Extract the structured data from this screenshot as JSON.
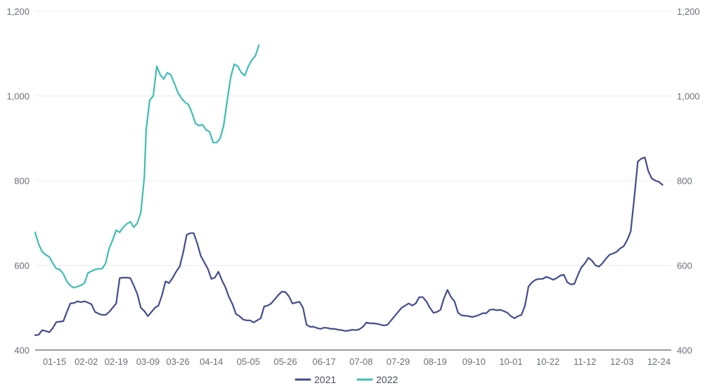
{
  "chart_data": {
    "type": "line",
    "title": "",
    "xlabel": "",
    "ylabel": "",
    "ylim": [
      400,
      1200
    ],
    "yticks": [
      400,
      600,
      800,
      1000,
      1200
    ],
    "ytick_labels": [
      "400",
      "600",
      "800",
      "1,000",
      "1,200"
    ],
    "xtick_labels": [
      "01-15",
      "02-02",
      "02-19",
      "03-09",
      "03-26",
      "04-14",
      "05-05",
      "05-26",
      "06-17",
      "07-08",
      "07-29",
      "08-19",
      "09-10",
      "10-01",
      "10-22",
      "11-12",
      "12-03",
      "12-24"
    ],
    "x_domain": [
      "01-04",
      "12-31"
    ],
    "grid": true,
    "legend_position": "bottom-center",
    "series": [
      {
        "name": "2021",
        "color": "#434b91",
        "points": [
          [
            "01-04",
            435
          ],
          [
            "01-06",
            436
          ],
          [
            "01-08",
            447
          ],
          [
            "01-10",
            445
          ],
          [
            "01-12",
            442
          ],
          [
            "01-14",
            452
          ],
          [
            "01-16",
            466
          ],
          [
            "01-18",
            467
          ],
          [
            "01-20",
            468
          ],
          [
            "01-22",
            490
          ],
          [
            "01-24",
            510
          ],
          [
            "01-26",
            511
          ],
          [
            "01-28",
            515
          ],
          [
            "01-30",
            513
          ],
          [
            "02-01",
            515
          ],
          [
            "02-03",
            512
          ],
          [
            "02-05",
            508
          ],
          [
            "02-07",
            490
          ],
          [
            "02-09",
            486
          ],
          [
            "02-11",
            483
          ],
          [
            "02-13",
            483
          ],
          [
            "02-15",
            490
          ],
          [
            "02-17",
            500
          ],
          [
            "02-19",
            510
          ],
          [
            "02-21",
            570
          ],
          [
            "02-23",
            571
          ],
          [
            "02-25",
            571
          ],
          [
            "02-27",
            570
          ],
          [
            "03-01",
            552
          ],
          [
            "03-03",
            532
          ],
          [
            "03-05",
            500
          ],
          [
            "03-07",
            492
          ],
          [
            "03-09",
            480
          ],
          [
            "03-11",
            490
          ],
          [
            "03-13",
            500
          ],
          [
            "03-15",
            505
          ],
          [
            "03-17",
            530
          ],
          [
            "03-19",
            562
          ],
          [
            "03-21",
            558
          ],
          [
            "03-23",
            570
          ],
          [
            "03-25",
            585
          ],
          [
            "03-27",
            597
          ],
          [
            "03-29",
            630
          ],
          [
            "03-31",
            672
          ],
          [
            "04-02",
            676
          ],
          [
            "04-04",
            676
          ],
          [
            "04-06",
            652
          ],
          [
            "04-08",
            622
          ],
          [
            "04-10",
            607
          ],
          [
            "04-12",
            592
          ],
          [
            "04-14",
            568
          ],
          [
            "04-16",
            571
          ],
          [
            "04-18",
            585
          ],
          [
            "04-20",
            565
          ],
          [
            "04-22",
            548
          ],
          [
            "04-24",
            525
          ],
          [
            "04-26",
            508
          ],
          [
            "04-28",
            485
          ],
          [
            "04-30",
            480
          ],
          [
            "05-02",
            472
          ],
          [
            "05-04",
            470
          ],
          [
            "05-06",
            470
          ],
          [
            "05-08",
            465
          ],
          [
            "05-10",
            470
          ],
          [
            "05-12",
            475
          ],
          [
            "05-14",
            503
          ],
          [
            "05-16",
            505
          ],
          [
            "05-18",
            510
          ],
          [
            "05-20",
            520
          ],
          [
            "05-22",
            530
          ],
          [
            "05-24",
            538
          ],
          [
            "05-26",
            537
          ],
          [
            "05-28",
            527
          ],
          [
            "05-30",
            510
          ],
          [
            "06-01",
            512
          ],
          [
            "06-03",
            514
          ],
          [
            "06-05",
            500
          ],
          [
            "06-07",
            460
          ],
          [
            "06-09",
            455
          ],
          [
            "06-11",
            455
          ],
          [
            "06-13",
            452
          ],
          [
            "06-15",
            450
          ],
          [
            "06-17",
            453
          ],
          [
            "06-19",
            452
          ],
          [
            "06-21",
            450
          ],
          [
            "06-23",
            450
          ],
          [
            "06-25",
            448
          ],
          [
            "06-27",
            447
          ],
          [
            "06-29",
            445
          ],
          [
            "07-01",
            446
          ],
          [
            "07-03",
            448
          ],
          [
            "07-05",
            447
          ],
          [
            "07-07",
            449
          ],
          [
            "07-09",
            455
          ],
          [
            "07-11",
            465
          ],
          [
            "07-13",
            463
          ],
          [
            "07-15",
            463
          ],
          [
            "07-17",
            462
          ],
          [
            "07-19",
            460
          ],
          [
            "07-21",
            458
          ],
          [
            "07-23",
            460
          ],
          [
            "07-25",
            470
          ],
          [
            "07-27",
            480
          ],
          [
            "07-29",
            490
          ],
          [
            "07-31",
            500
          ],
          [
            "08-02",
            505
          ],
          [
            "08-04",
            510
          ],
          [
            "08-06",
            505
          ],
          [
            "08-08",
            510
          ],
          [
            "08-10",
            525
          ],
          [
            "08-12",
            525
          ],
          [
            "08-14",
            515
          ],
          [
            "08-16",
            500
          ],
          [
            "08-18",
            488
          ],
          [
            "08-20",
            490
          ],
          [
            "08-22",
            495
          ],
          [
            "08-24",
            522
          ],
          [
            "08-26",
            542
          ],
          [
            "08-28",
            525
          ],
          [
            "08-30",
            515
          ],
          [
            "09-01",
            488
          ],
          [
            "09-03",
            482
          ],
          [
            "09-05",
            481
          ],
          [
            "09-07",
            480
          ],
          [
            "09-09",
            478
          ],
          [
            "09-11",
            480
          ],
          [
            "09-13",
            483
          ],
          [
            "09-15",
            487
          ],
          [
            "09-17",
            487
          ],
          [
            "09-19",
            495
          ],
          [
            "09-21",
            496
          ],
          [
            "09-23",
            494
          ],
          [
            "09-25",
            495
          ],
          [
            "09-27",
            492
          ],
          [
            "09-29",
            488
          ],
          [
            "10-01",
            480
          ],
          [
            "10-03",
            475
          ],
          [
            "10-05",
            480
          ],
          [
            "10-07",
            483
          ],
          [
            "10-09",
            505
          ],
          [
            "10-11",
            550
          ],
          [
            "10-13",
            560
          ],
          [
            "10-15",
            566
          ],
          [
            "10-17",
            568
          ],
          [
            "10-19",
            568
          ],
          [
            "10-21",
            573
          ],
          [
            "10-23",
            570
          ],
          [
            "10-25",
            566
          ],
          [
            "10-27",
            570
          ],
          [
            "10-29",
            576
          ],
          [
            "10-31",
            578
          ],
          [
            "11-02",
            560
          ],
          [
            "11-04",
            555
          ],
          [
            "11-06",
            556
          ],
          [
            "11-08",
            577
          ],
          [
            "11-10",
            595
          ],
          [
            "11-12",
            605
          ],
          [
            "11-14",
            618
          ],
          [
            "11-16",
            611
          ],
          [
            "11-18",
            600
          ],
          [
            "11-20",
            597
          ],
          [
            "11-22",
            605
          ],
          [
            "11-24",
            616
          ],
          [
            "11-26",
            625
          ],
          [
            "11-28",
            628
          ],
          [
            "11-30",
            632
          ],
          [
            "12-02",
            640
          ],
          [
            "12-04",
            645
          ],
          [
            "12-06",
            660
          ],
          [
            "12-08",
            680
          ],
          [
            "12-10",
            760
          ],
          [
            "12-12",
            845
          ],
          [
            "12-14",
            852
          ],
          [
            "12-16",
            855
          ],
          [
            "12-18",
            822
          ],
          [
            "12-20",
            805
          ],
          [
            "12-22",
            800
          ],
          [
            "12-24",
            797
          ],
          [
            "12-26",
            790
          ]
        ]
      },
      {
        "name": "2022",
        "color": "#3dbdb4",
        "points": [
          [
            "01-04",
            678
          ],
          [
            "01-06",
            650
          ],
          [
            "01-08",
            632
          ],
          [
            "01-10",
            625
          ],
          [
            "01-12",
            620
          ],
          [
            "01-14",
            605
          ],
          [
            "01-16",
            592
          ],
          [
            "01-18",
            590
          ],
          [
            "01-20",
            580
          ],
          [
            "01-22",
            562
          ],
          [
            "01-24",
            552
          ],
          [
            "01-26",
            547
          ],
          [
            "01-28",
            550
          ],
          [
            "01-30",
            553
          ],
          [
            "02-01",
            558
          ],
          [
            "02-03",
            582
          ],
          [
            "02-05",
            586
          ],
          [
            "02-07",
            590
          ],
          [
            "02-09",
            592
          ],
          [
            "02-11",
            592
          ],
          [
            "02-13",
            605
          ],
          [
            "02-15",
            640
          ],
          [
            "02-17",
            660
          ],
          [
            "02-19",
            683
          ],
          [
            "02-21",
            678
          ],
          [
            "02-23",
            690
          ],
          [
            "02-25",
            698
          ],
          [
            "02-27",
            703
          ],
          [
            "03-01",
            690
          ],
          [
            "03-03",
            700
          ],
          [
            "03-05",
            725
          ],
          [
            "03-07",
            810
          ],
          [
            "03-08",
            920
          ],
          [
            "03-10",
            990
          ],
          [
            "03-12",
            1000
          ],
          [
            "03-14",
            1070
          ],
          [
            "03-16",
            1050
          ],
          [
            "03-18",
            1040
          ],
          [
            "03-20",
            1055
          ],
          [
            "03-22",
            1050
          ],
          [
            "03-24",
            1030
          ],
          [
            "03-26",
            1008
          ],
          [
            "03-28",
            995
          ],
          [
            "03-30",
            985
          ],
          [
            "04-01",
            980
          ],
          [
            "04-03",
            960
          ],
          [
            "04-05",
            935
          ],
          [
            "04-07",
            930
          ],
          [
            "04-09",
            932
          ],
          [
            "04-11",
            920
          ],
          [
            "04-13",
            915
          ],
          [
            "04-15",
            890
          ],
          [
            "04-17",
            890
          ],
          [
            "04-19",
            900
          ],
          [
            "04-21",
            930
          ],
          [
            "04-23",
            990
          ],
          [
            "04-25",
            1045
          ],
          [
            "04-27",
            1075
          ],
          [
            "04-29",
            1070
          ],
          [
            "05-01",
            1055
          ],
          [
            "05-03",
            1048
          ],
          [
            "05-05",
            1070
          ],
          [
            "05-07",
            1085
          ],
          [
            "05-09",
            1095
          ],
          [
            "05-11",
            1120
          ]
        ]
      }
    ]
  }
}
